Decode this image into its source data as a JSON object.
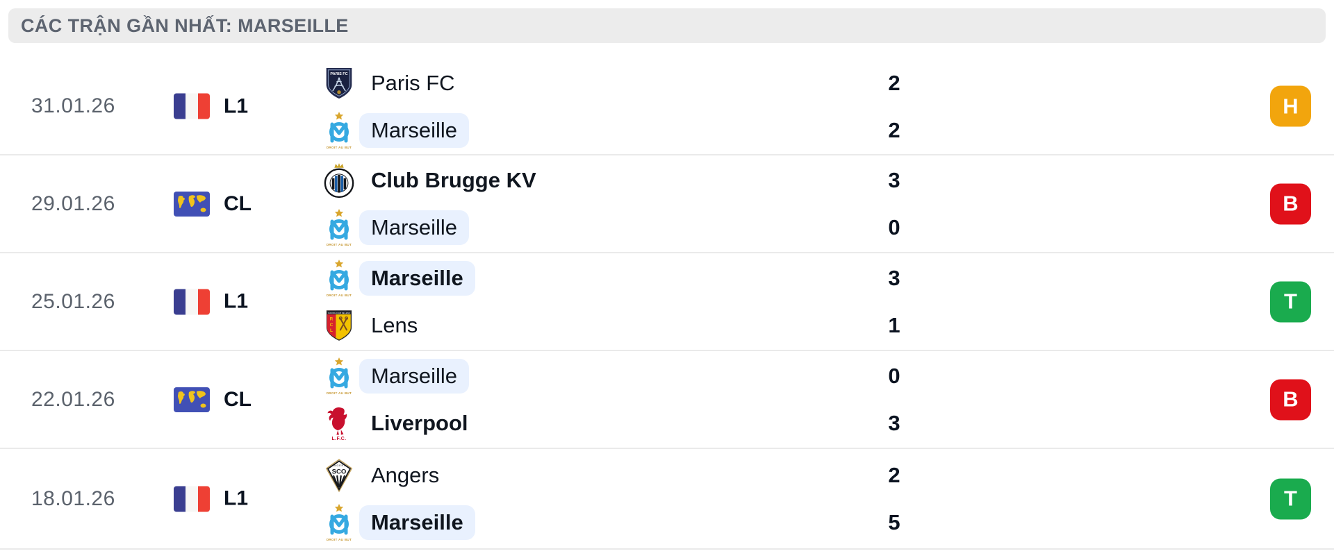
{
  "header": {
    "title": "CÁC TRẬN GẦN NHẤT: MARSEILLE"
  },
  "colors": {
    "header_bg": "#ECECEC",
    "header_text": "#5D6470",
    "date_text": "#5B626C",
    "divider": "#EAEAEA",
    "highlight_pill": "#E9F1FE",
    "badge_draw": "#F2A50D",
    "badge_loss": "#E0111A",
    "badge_win": "#1AAB4E"
  },
  "matches": [
    {
      "date": "31.01.26",
      "competition": {
        "code": "L1",
        "icon": "france-flag"
      },
      "home": {
        "name": "Paris FC",
        "logo": "paris-fc",
        "score": "2",
        "bold": false,
        "highlight": false
      },
      "away": {
        "name": "Marseille",
        "logo": "marseille",
        "score": "2",
        "bold": false,
        "highlight": true
      },
      "result": {
        "letter": "H",
        "type": "draw"
      }
    },
    {
      "date": "29.01.26",
      "competition": {
        "code": "CL",
        "icon": "world-map"
      },
      "home": {
        "name": "Club Brugge KV",
        "logo": "club-brugge",
        "score": "3",
        "bold": true,
        "highlight": false
      },
      "away": {
        "name": "Marseille",
        "logo": "marseille",
        "score": "0",
        "bold": false,
        "highlight": true
      },
      "result": {
        "letter": "B",
        "type": "loss"
      }
    },
    {
      "date": "25.01.26",
      "competition": {
        "code": "L1",
        "icon": "france-flag"
      },
      "home": {
        "name": "Marseille",
        "logo": "marseille",
        "score": "3",
        "bold": true,
        "highlight": true
      },
      "away": {
        "name": "Lens",
        "logo": "lens",
        "score": "1",
        "bold": false,
        "highlight": false
      },
      "result": {
        "letter": "T",
        "type": "win"
      }
    },
    {
      "date": "22.01.26",
      "competition": {
        "code": "CL",
        "icon": "world-map"
      },
      "home": {
        "name": "Marseille",
        "logo": "marseille",
        "score": "0",
        "bold": false,
        "highlight": true
      },
      "away": {
        "name": "Liverpool",
        "logo": "liverpool",
        "score": "3",
        "bold": true,
        "highlight": false
      },
      "result": {
        "letter": "B",
        "type": "loss"
      }
    },
    {
      "date": "18.01.26",
      "competition": {
        "code": "L1",
        "icon": "france-flag"
      },
      "home": {
        "name": "Angers",
        "logo": "angers",
        "score": "2",
        "bold": false,
        "highlight": false
      },
      "away": {
        "name": "Marseille",
        "logo": "marseille",
        "score": "5",
        "bold": true,
        "highlight": true
      },
      "result": {
        "letter": "T",
        "type": "win"
      }
    }
  ]
}
